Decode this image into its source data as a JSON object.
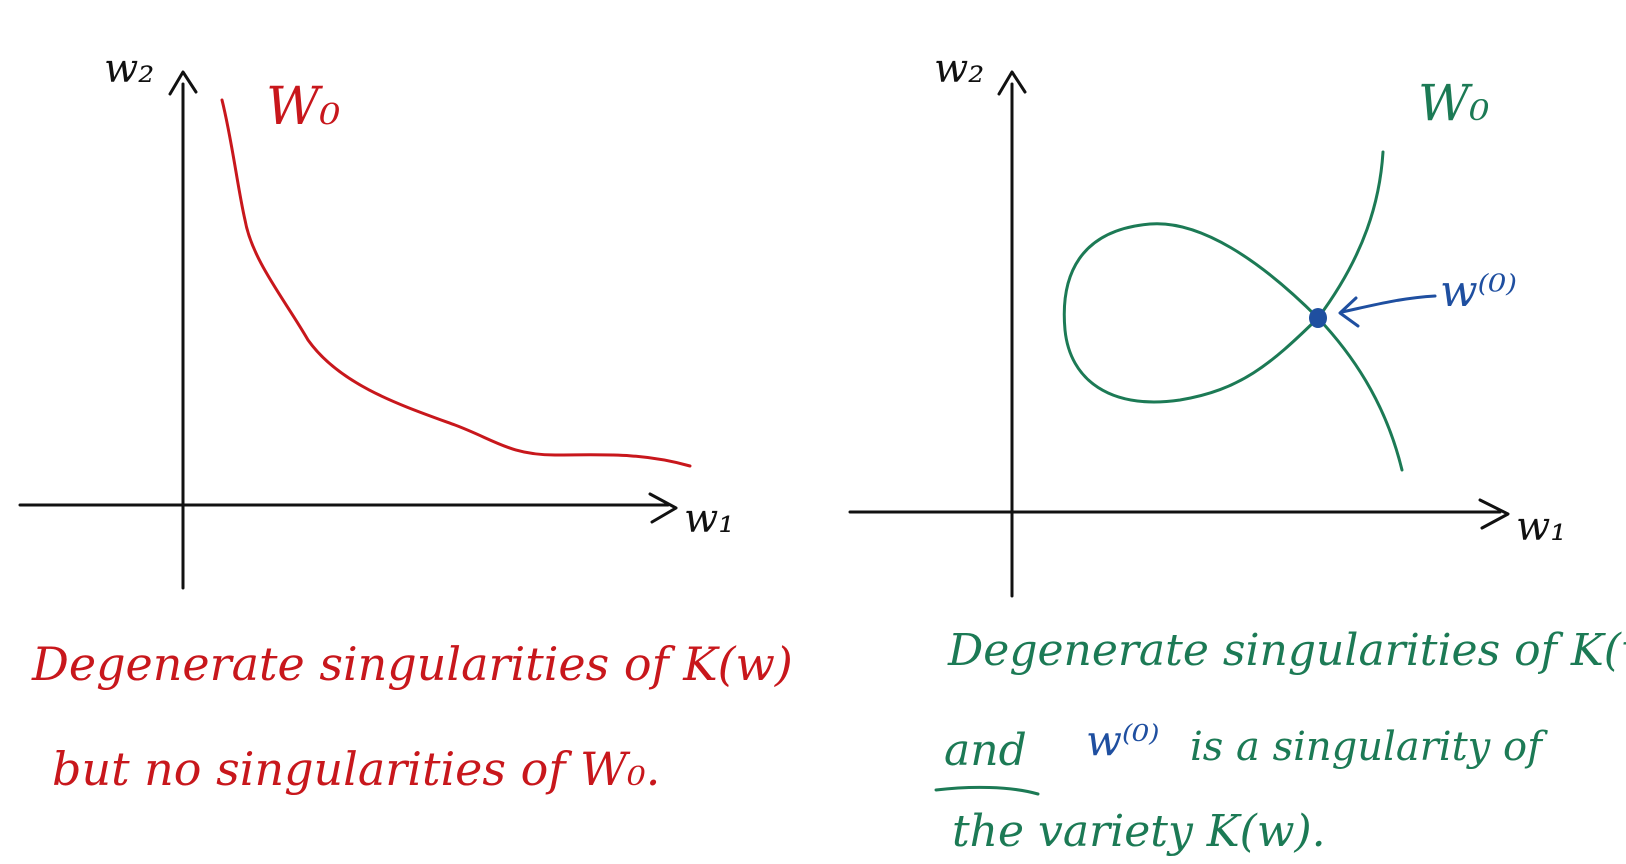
{
  "colors": {
    "axis": "#111111",
    "left_curve": "#c8171c",
    "right_curve": "#1c7a55",
    "point": "#1f4fa0"
  },
  "left_panel": {
    "y_axis_label": "w₂",
    "x_axis_label": "w₁",
    "curve_label": "W₀",
    "caption_line1": "Degenerate singularities of K(w)",
    "caption_line2": "but no singularities of W₀."
  },
  "right_panel": {
    "y_axis_label": "w₂",
    "x_axis_label": "w₁",
    "curve_label": "W₀",
    "point_label": "w⁽⁰⁾",
    "caption_line1": "Degenerate singularities of K(w)",
    "caption_line2_a": "and",
    "caption_line2_b": "w⁽⁰⁾",
    "caption_line2_c": "is a singularity of",
    "caption_line3": "the variety K(w)."
  }
}
